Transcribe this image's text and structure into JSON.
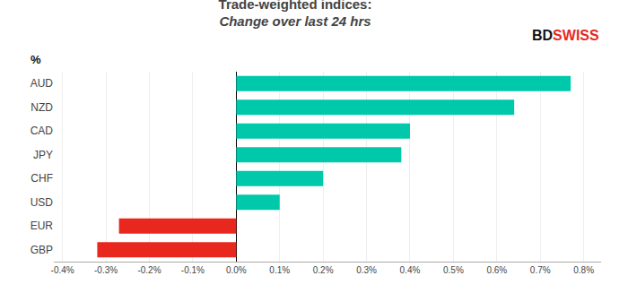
{
  "chart_data": {
    "type": "bar",
    "orientation": "horizontal",
    "title": "Trade-weighted indices:",
    "subtitle": "Change over last 24 hrs",
    "categories": [
      "AUD",
      "NZD",
      "CAD",
      "JPY",
      "CHF",
      "USD",
      "EUR",
      "GBP"
    ],
    "values": [
      0.77,
      0.64,
      0.4,
      0.38,
      0.2,
      0.1,
      -0.27,
      -0.32
    ],
    "colors": [
      "#00c8aa",
      "#00c8aa",
      "#00c8aa",
      "#00c8aa",
      "#00c8aa",
      "#00c8aa",
      "#e8281e",
      "#e8281e"
    ],
    "xlim": [
      -0.42,
      0.84
    ],
    "xticks": [
      {
        "value": -0.4,
        "label": "-0.4%"
      },
      {
        "value": -0.3,
        "label": "-0.3%"
      },
      {
        "value": -0.2,
        "label": "-0.2%"
      },
      {
        "value": -0.1,
        "label": "-0.1%"
      },
      {
        "value": 0.0,
        "label": "0.0%"
      },
      {
        "value": 0.1,
        "label": "0.1%"
      },
      {
        "value": 0.2,
        "label": "0.2%"
      },
      {
        "value": 0.3,
        "label": "0.3%"
      },
      {
        "value": 0.4,
        "label": "0.4%"
      },
      {
        "value": 0.5,
        "label": "0.5%"
      },
      {
        "value": 0.6,
        "label": "0.6%"
      },
      {
        "value": 0.7,
        "label": "0.7%"
      },
      {
        "value": 0.8,
        "label": "0.8%"
      }
    ],
    "grid": true,
    "annotations": [
      {
        "text": "%"
      },
      {
        "text": "BD",
        "color": "#111111"
      },
      {
        "text": "SWISS",
        "color": "#e8281e"
      }
    ]
  }
}
